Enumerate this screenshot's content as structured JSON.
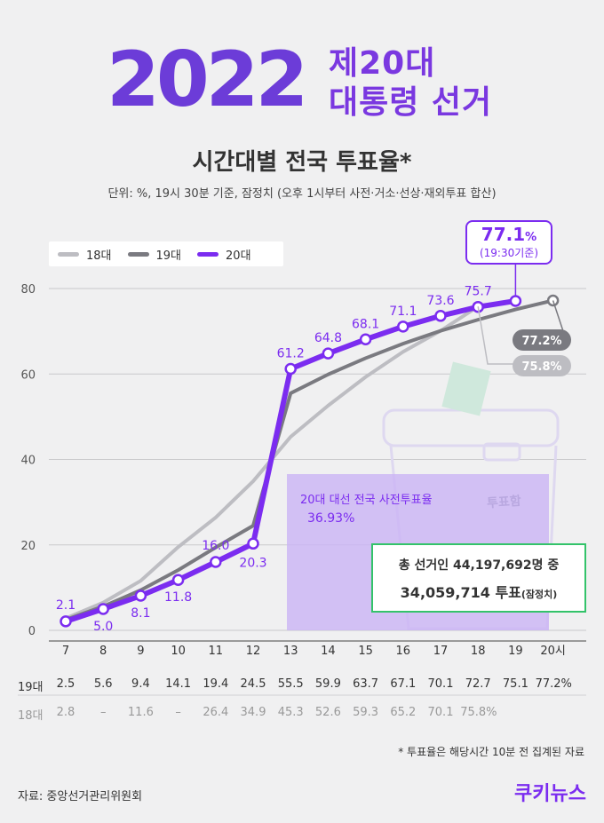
{
  "header": {
    "year": "2022",
    "line1": "제20대",
    "line2": "대통령 선거",
    "title": "시간대별 전국 투표율*",
    "subtitle": "단위: %, 19시 30분 기준, 잠정치 (오후 1시부터 사전·거소·선상·재외투표 합산)"
  },
  "callout": {
    "value": "77.1",
    "unit": "%",
    "note": "(19:30기준)"
  },
  "early_vote": {
    "label": "20대 대선 전국 사전투표율",
    "value": "36.93%"
  },
  "ballot_box_label": "투표함",
  "totals": {
    "line1": "총 선거인 44,197,692명 중",
    "line2": "34,059,714 투표",
    "line2_note": "(잠정치)"
  },
  "table": {
    "row19_label": "19대",
    "row19": [
      "2.5",
      "5.6",
      "9.4",
      "14.1",
      "19.4",
      "24.5",
      "55.5",
      "59.9",
      "63.7",
      "67.1",
      "70.1",
      "72.7",
      "75.1",
      "77.2%"
    ],
    "row18_label": "18대",
    "row18": [
      "2.8",
      "–",
      "11.6",
      "–",
      "26.4",
      "34.9",
      "45.3",
      "52.6",
      "59.3",
      "65.2",
      "70.1",
      "75.8%",
      "",
      ""
    ]
  },
  "footnote": "* 투표율은 해당시간 10분 전 집계된 자료",
  "source": "자료: 중앙선거관리위원회",
  "brand": "쿠키뉴스",
  "colors": {
    "s20": "#7b2cf0",
    "s19": "#7a7a80",
    "s18": "#bdbdc2",
    "accent_green": "#33c36a"
  },
  "chart_data": {
    "type": "line",
    "categories": [
      "7",
      "8",
      "9",
      "10",
      "11",
      "12",
      "13",
      "14",
      "15",
      "16",
      "17",
      "18",
      "19",
      "20시"
    ],
    "ylim": [
      0,
      80
    ],
    "yticks": [
      0,
      20,
      40,
      60,
      80
    ],
    "legend": "top-left",
    "grid": true,
    "series": [
      {
        "name": "18대",
        "values": [
          2.8,
          6.5,
          11.6,
          19.5,
          26.4,
          34.9,
          45.3,
          52.6,
          59.3,
          65.2,
          70.1,
          75.8,
          null,
          null
        ],
        "labels": []
      },
      {
        "name": "19대",
        "values": [
          2.5,
          5.6,
          9.4,
          14.1,
          19.4,
          24.5,
          55.5,
          59.9,
          63.7,
          67.1,
          70.1,
          72.7,
          75.1,
          77.2
        ],
        "end_label": "77.2%",
        "end_label_18": "75.8%"
      },
      {
        "name": "20대",
        "values": [
          2.1,
          5.0,
          8.1,
          11.8,
          16.0,
          20.3,
          61.2,
          64.8,
          68.1,
          71.1,
          73.6,
          75.7,
          77.1,
          null
        ],
        "labels": [
          "2.1",
          "5.0",
          "8.1",
          "11.8",
          "16.0",
          "20.3",
          "61.2",
          "64.8",
          "68.1",
          "71.1",
          "73.6",
          "75.7",
          "",
          ""
        ]
      }
    ]
  }
}
